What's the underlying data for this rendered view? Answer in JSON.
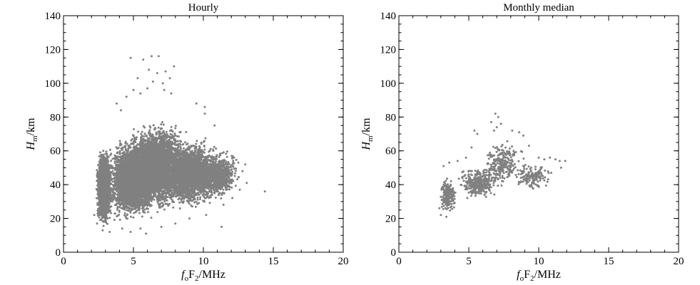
{
  "figure": {
    "background": "#ffffff",
    "marker_color": "#808080"
  },
  "chart_data": [
    {
      "type": "scatter",
      "title": "Hourly",
      "xlabel": "foF2/MHz",
      "xlabel_parts": {
        "f": "f",
        "o": "o",
        "F": "F",
        "two": "2",
        "unit": "/MHz"
      },
      "ylabel": "Hm/km",
      "ylabel_parts": {
        "H": "H",
        "m": "m",
        "unit": "/km"
      },
      "xlim": [
        0,
        20
      ],
      "ylim": [
        0,
        140
      ],
      "xticks": [
        "0",
        "5",
        "10",
        "15",
        "20"
      ],
      "yticks": [
        "0",
        "20",
        "40",
        "60",
        "80",
        "100",
        "120",
        "140"
      ],
      "grid": false,
      "marker": "dot",
      "color": "#808080",
      "clusters": [
        {
          "x": [
            2.3,
            3.5
          ],
          "y": [
            14,
            62
          ],
          "count": 2600
        },
        {
          "x": [
            3.0,
            7.0
          ],
          "y": [
            18,
            70
          ],
          "count": 4200
        },
        {
          "x": [
            4.5,
            9.0
          ],
          "y": [
            22,
            80
          ],
          "count": 3600
        },
        {
          "x": [
            6.5,
            11.5
          ],
          "y": [
            25,
            68
          ],
          "count": 2600
        },
        {
          "x": [
            9.5,
            12.7
          ],
          "y": [
            28,
            62
          ],
          "count": 700
        }
      ],
      "points": [
        {
          "x": 4.8,
          "y": 115
        },
        {
          "x": 5.7,
          "y": 114
        },
        {
          "x": 6.3,
          "y": 116
        },
        {
          "x": 6.8,
          "y": 116
        },
        {
          "x": 6.1,
          "y": 108
        },
        {
          "x": 6.7,
          "y": 106
        },
        {
          "x": 7.3,
          "y": 107
        },
        {
          "x": 7.9,
          "y": 110
        },
        {
          "x": 5.3,
          "y": 103
        },
        {
          "x": 6.4,
          "y": 101
        },
        {
          "x": 7.1,
          "y": 100
        },
        {
          "x": 7.6,
          "y": 103
        },
        {
          "x": 4.5,
          "y": 92
        },
        {
          "x": 5.0,
          "y": 96
        },
        {
          "x": 5.5,
          "y": 94
        },
        {
          "x": 6.0,
          "y": 97
        },
        {
          "x": 7.2,
          "y": 96
        },
        {
          "x": 7.7,
          "y": 94
        },
        {
          "x": 3.8,
          "y": 88
        },
        {
          "x": 4.1,
          "y": 84
        },
        {
          "x": 9.5,
          "y": 88
        },
        {
          "x": 10.1,
          "y": 86
        },
        {
          "x": 10.1,
          "y": 82
        },
        {
          "x": 10.8,
          "y": 75
        },
        {
          "x": 14.4,
          "y": 36
        },
        {
          "x": 13.1,
          "y": 41
        },
        {
          "x": 12.6,
          "y": 37
        },
        {
          "x": 11.3,
          "y": 15
        },
        {
          "x": 12.8,
          "y": 48
        },
        {
          "x": 12.5,
          "y": 53
        },
        {
          "x": 13.0,
          "y": 52
        },
        {
          "x": 12.2,
          "y": 56
        },
        {
          "x": 2.4,
          "y": 17
        },
        {
          "x": 2.8,
          "y": 13
        },
        {
          "x": 3.3,
          "y": 12
        },
        {
          "x": 4.2,
          "y": 14
        },
        {
          "x": 4.8,
          "y": 12
        },
        {
          "x": 5.9,
          "y": 11
        },
        {
          "x": 5.5,
          "y": 14
        },
        {
          "x": 2.2,
          "y": 22
        },
        {
          "x": 8.0,
          "y": 17
        },
        {
          "x": 9.0,
          "y": 20
        },
        {
          "x": 10.2,
          "y": 22
        },
        {
          "x": 7.0,
          "y": 15
        }
      ]
    },
    {
      "type": "scatter",
      "title": "Monthly median",
      "xlabel": "foF2/MHz",
      "xlabel_parts": {
        "f": "f",
        "o": "o",
        "F": "F",
        "two": "2",
        "unit": "/MHz"
      },
      "ylabel": "Hm/km",
      "ylabel_parts": {
        "H": "H",
        "m": "m",
        "unit": "/km"
      },
      "xlim": [
        0,
        20
      ],
      "ylim": [
        0,
        140
      ],
      "xticks": [
        "0",
        "5",
        "10",
        "15",
        "20"
      ],
      "yticks": [
        "0",
        "20",
        "40",
        "60",
        "80",
        "100",
        "120",
        "140"
      ],
      "grid": false,
      "marker": "dot",
      "color": "#808080",
      "clusters": [
        {
          "x": [
            2.8,
            4.2
          ],
          "y": [
            22,
            45
          ],
          "count": 220
        },
        {
          "x": [
            4.0,
            7.5
          ],
          "y": [
            30,
            52
          ],
          "count": 330
        },
        {
          "x": [
            5.8,
            9.0
          ],
          "y": [
            38,
            68
          ],
          "count": 230
        },
        {
          "x": [
            8.0,
            11.0
          ],
          "y": [
            36,
            54
          ],
          "count": 150
        }
      ],
      "points": [
        {
          "x": 6.9,
          "y": 82
        },
        {
          "x": 7.1,
          "y": 80
        },
        {
          "x": 6.6,
          "y": 77
        },
        {
          "x": 7.3,
          "y": 76
        },
        {
          "x": 7.0,
          "y": 74
        },
        {
          "x": 6.8,
          "y": 72
        },
        {
          "x": 5.4,
          "y": 72
        },
        {
          "x": 5.6,
          "y": 70
        },
        {
          "x": 8.1,
          "y": 72
        },
        {
          "x": 8.6,
          "y": 71
        },
        {
          "x": 8.9,
          "y": 69
        },
        {
          "x": 9.3,
          "y": 63
        },
        {
          "x": 10.0,
          "y": 56
        },
        {
          "x": 10.4,
          "y": 55
        },
        {
          "x": 10.8,
          "y": 56
        },
        {
          "x": 11.2,
          "y": 55
        },
        {
          "x": 11.5,
          "y": 54
        },
        {
          "x": 11.9,
          "y": 54
        },
        {
          "x": 11.6,
          "y": 50
        },
        {
          "x": 10.9,
          "y": 47
        },
        {
          "x": 3.0,
          "y": 22
        },
        {
          "x": 3.4,
          "y": 21
        },
        {
          "x": 2.9,
          "y": 26
        },
        {
          "x": 3.2,
          "y": 51
        },
        {
          "x": 3.6,
          "y": 53
        },
        {
          "x": 4.2,
          "y": 54
        },
        {
          "x": 4.8,
          "y": 56
        },
        {
          "x": 5.2,
          "y": 62
        }
      ]
    }
  ]
}
